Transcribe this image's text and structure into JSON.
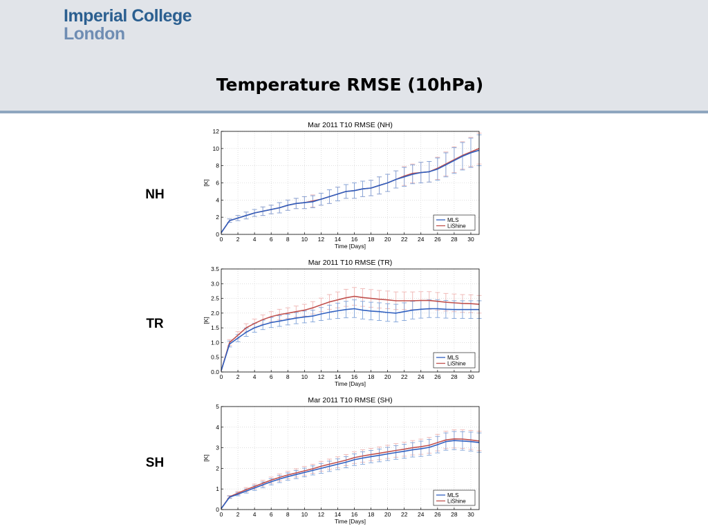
{
  "header": {
    "logo_line1": "Imperial College",
    "logo_line2": "London",
    "title": "Temperature RMSE (10hPa)"
  },
  "row_labels": [
    "NH",
    "TR",
    "SH"
  ],
  "colors": {
    "header_bg": "#e1e4e9",
    "header_rule": "#8fa6bf",
    "logo_primary": "#2b5f90",
    "logo_secondary": "#6f8db3",
    "mls": "#2f5fbf",
    "lishine": "#c0504d",
    "mls_error": "#7ea2d8",
    "lishine_error": "#eeb4b2"
  },
  "chart_data": [
    {
      "type": "line",
      "title": "Mar 2011 T10 RMSE (NH)",
      "xlabel": "Time [Days]",
      "ylabel": "[K]",
      "xlim": [
        0,
        31
      ],
      "ylim": [
        0,
        12
      ],
      "xticks": [
        0,
        2,
        4,
        6,
        8,
        10,
        12,
        14,
        16,
        18,
        20,
        22,
        24,
        26,
        28,
        30
      ],
      "yticks": [
        0,
        2,
        4,
        6,
        8,
        10,
        12
      ],
      "ytick_labels": [
        "0",
        "2",
        "4",
        "6",
        "8",
        "10",
        "12"
      ],
      "grid": true,
      "legend_position": "bottom-right",
      "x": [
        0,
        1,
        2,
        3,
        4,
        5,
        6,
        7,
        8,
        9,
        10,
        11,
        12,
        13,
        14,
        15,
        16,
        17,
        18,
        19,
        20,
        21,
        22,
        23,
        24,
        25,
        26,
        27,
        28,
        29,
        30,
        31
      ],
      "series": [
        {
          "name": "MLS",
          "color": "#2f5fbf",
          "values": [
            0.2,
            1.6,
            1.9,
            2.2,
            2.5,
            2.7,
            2.9,
            3.1,
            3.4,
            3.6,
            3.7,
            3.8,
            4.1,
            4.4,
            4.7,
            5.0,
            5.1,
            5.3,
            5.4,
            5.7,
            6.0,
            6.4,
            6.7,
            7.0,
            7.2,
            7.3,
            7.6,
            8.1,
            8.6,
            9.1,
            9.5,
            9.8
          ],
          "error": [
            0,
            0.2,
            0.3,
            0.4,
            0.4,
            0.5,
            0.5,
            0.6,
            0.6,
            0.6,
            0.7,
            0.7,
            0.7,
            0.8,
            0.8,
            0.8,
            0.9,
            0.9,
            0.9,
            1.0,
            1.0,
            1.0,
            1.1,
            1.1,
            1.2,
            1.2,
            1.3,
            1.4,
            1.5,
            1.6,
            1.7,
            1.8
          ]
        },
        {
          "name": "LiShine",
          "color": "#c0504d",
          "values": [
            0.2,
            1.6,
            1.9,
            2.2,
            2.5,
            2.7,
            2.9,
            3.1,
            3.4,
            3.6,
            3.7,
            3.9,
            4.1,
            4.4,
            4.7,
            5.0,
            5.1,
            5.3,
            5.4,
            5.7,
            6.0,
            6.4,
            6.8,
            7.1,
            7.2,
            7.3,
            7.7,
            8.2,
            8.7,
            9.2,
            9.6,
            10.0
          ],
          "error": [
            0,
            0.2,
            0.3,
            0.4,
            0.4,
            0.5,
            0.5,
            0.6,
            0.6,
            0.6,
            0.7,
            0.7,
            0.7,
            0.8,
            0.8,
            0.8,
            0.9,
            0.9,
            0.9,
            1.0,
            1.0,
            1.0,
            1.1,
            1.1,
            1.2,
            1.2,
            1.3,
            1.4,
            1.5,
            1.6,
            1.7,
            1.8
          ]
        }
      ]
    },
    {
      "type": "line",
      "title": "Mar 2011 T10 RMSE (TR)",
      "xlabel": "Time [Days]",
      "ylabel": "[K]",
      "xlim": [
        0,
        31
      ],
      "ylim": [
        0,
        3.5
      ],
      "xticks": [
        0,
        2,
        4,
        6,
        8,
        10,
        12,
        14,
        16,
        18,
        20,
        22,
        24,
        26,
        28,
        30
      ],
      "yticks": [
        0,
        0.5,
        1.0,
        1.5,
        2.0,
        2.5,
        3.0,
        3.5
      ],
      "ytick_labels": [
        "0.0",
        "0.5",
        "1.0",
        "1.5",
        "2.0",
        "2.5",
        "3.0",
        "3.5"
      ],
      "grid": true,
      "legend_position": "bottom-right",
      "x": [
        0,
        1,
        2,
        3,
        4,
        5,
        6,
        7,
        8,
        9,
        10,
        11,
        12,
        13,
        14,
        15,
        16,
        17,
        18,
        19,
        20,
        21,
        22,
        23,
        24,
        25,
        26,
        27,
        28,
        29,
        30,
        31
      ],
      "series": [
        {
          "name": "MLS",
          "color": "#2f5fbf",
          "values": [
            0.05,
            0.95,
            1.15,
            1.35,
            1.5,
            1.6,
            1.68,
            1.73,
            1.78,
            1.83,
            1.87,
            1.9,
            1.97,
            2.03,
            2.08,
            2.12,
            2.15,
            2.1,
            2.07,
            2.05,
            2.02,
            2.0,
            2.05,
            2.1,
            2.13,
            2.15,
            2.15,
            2.13,
            2.12,
            2.12,
            2.12,
            2.12
          ],
          "error": [
            0,
            0.1,
            0.12,
            0.14,
            0.15,
            0.16,
            0.17,
            0.18,
            0.18,
            0.19,
            0.2,
            0.2,
            0.22,
            0.24,
            0.26,
            0.28,
            0.3,
            0.3,
            0.3,
            0.3,
            0.3,
            0.3,
            0.3,
            0.3,
            0.3,
            0.3,
            0.3,
            0.3,
            0.3,
            0.3,
            0.3,
            0.3
          ]
        },
        {
          "name": "LiShine",
          "color": "#c0504d",
          "values": [
            0.05,
            1.0,
            1.25,
            1.5,
            1.65,
            1.78,
            1.88,
            1.95,
            2.0,
            2.05,
            2.1,
            2.18,
            2.28,
            2.38,
            2.45,
            2.52,
            2.57,
            2.53,
            2.5,
            2.47,
            2.45,
            2.42,
            2.42,
            2.42,
            2.43,
            2.43,
            2.4,
            2.37,
            2.35,
            2.33,
            2.32,
            2.3
          ],
          "error": [
            0,
            0.1,
            0.12,
            0.14,
            0.15,
            0.16,
            0.17,
            0.18,
            0.18,
            0.19,
            0.2,
            0.21,
            0.23,
            0.25,
            0.27,
            0.29,
            0.3,
            0.3,
            0.3,
            0.3,
            0.3,
            0.3,
            0.3,
            0.3,
            0.3,
            0.3,
            0.3,
            0.3,
            0.3,
            0.3,
            0.3,
            0.3
          ]
        }
      ]
    },
    {
      "type": "line",
      "title": "Mar 2011 T10 RMSE (SH)",
      "xlabel": "Time [Days]",
      "ylabel": "[K]",
      "xlim": [
        0,
        31
      ],
      "ylim": [
        0,
        5
      ],
      "xticks": [
        0,
        2,
        4,
        6,
        8,
        10,
        12,
        14,
        16,
        18,
        20,
        22,
        24,
        26,
        28,
        30
      ],
      "yticks": [
        0,
        1,
        2,
        3,
        4,
        5
      ],
      "ytick_labels": [
        "0",
        "1",
        "2",
        "3",
        "4",
        "5"
      ],
      "grid": true,
      "legend_position": "bottom-right",
      "x": [
        0,
        1,
        2,
        3,
        4,
        5,
        6,
        7,
        8,
        9,
        10,
        11,
        12,
        13,
        14,
        15,
        16,
        17,
        18,
        19,
        20,
        21,
        22,
        23,
        24,
        25,
        26,
        27,
        28,
        29,
        30,
        31
      ],
      "series": [
        {
          "name": "MLS",
          "color": "#2f5fbf",
          "values": [
            0.05,
            0.6,
            0.75,
            0.9,
            1.05,
            1.2,
            1.35,
            1.48,
            1.6,
            1.7,
            1.8,
            1.9,
            2.0,
            2.1,
            2.2,
            2.3,
            2.42,
            2.5,
            2.57,
            2.63,
            2.7,
            2.77,
            2.83,
            2.9,
            2.95,
            3.02,
            3.15,
            3.3,
            3.35,
            3.33,
            3.3,
            3.25
          ],
          "error": [
            0,
            0.06,
            0.08,
            0.1,
            0.12,
            0.14,
            0.15,
            0.17,
            0.18,
            0.2,
            0.21,
            0.22,
            0.24,
            0.25,
            0.26,
            0.27,
            0.28,
            0.3,
            0.3,
            0.31,
            0.32,
            0.33,
            0.34,
            0.35,
            0.37,
            0.38,
            0.4,
            0.42,
            0.44,
            0.45,
            0.46,
            0.47
          ]
        },
        {
          "name": "LiShine",
          "color": "#c0504d",
          "values": [
            0.05,
            0.62,
            0.8,
            0.97,
            1.12,
            1.28,
            1.43,
            1.56,
            1.68,
            1.78,
            1.88,
            1.98,
            2.1,
            2.2,
            2.3,
            2.4,
            2.52,
            2.6,
            2.67,
            2.73,
            2.8,
            2.87,
            2.93,
            3.0,
            3.05,
            3.12,
            3.25,
            3.38,
            3.43,
            3.42,
            3.38,
            3.33
          ],
          "error": [
            0,
            0.06,
            0.08,
            0.1,
            0.12,
            0.14,
            0.15,
            0.17,
            0.18,
            0.2,
            0.21,
            0.22,
            0.24,
            0.25,
            0.26,
            0.27,
            0.28,
            0.3,
            0.3,
            0.31,
            0.32,
            0.33,
            0.34,
            0.35,
            0.37,
            0.38,
            0.4,
            0.42,
            0.44,
            0.45,
            0.46,
            0.47
          ]
        }
      ]
    }
  ]
}
